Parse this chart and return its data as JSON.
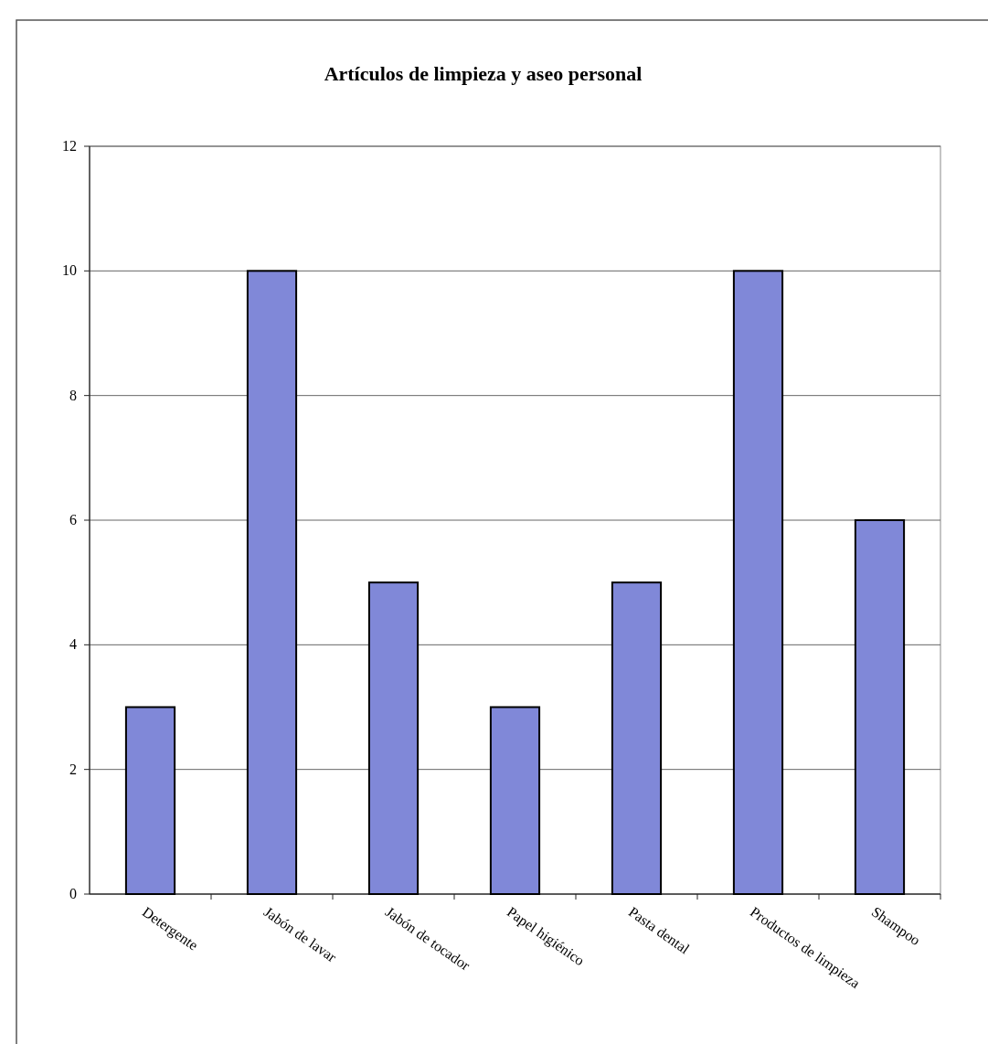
{
  "chart_data": {
    "type": "bar",
    "title": "Artículos de limpieza y aseo personal",
    "categories": [
      "Detergente",
      "Jabón de lavar",
      "Jabón de tocador",
      "Papel higiénico",
      "Pasta dental",
      "Productos de limpieza",
      "Shampoo"
    ],
    "values": [
      3,
      10,
      5,
      3,
      5,
      10,
      6
    ],
    "color": "#8088d8",
    "ylim": [
      0,
      12
    ],
    "yticks": [
      0,
      2,
      4,
      6,
      8,
      10,
      12
    ],
    "grid": "y"
  }
}
